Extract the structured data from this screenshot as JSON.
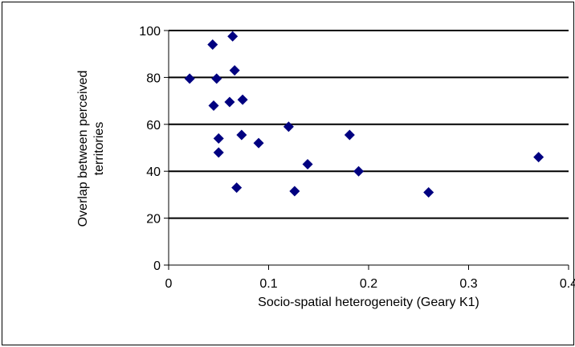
{
  "chart_data": {
    "type": "scatter",
    "title": "",
    "xlabel": "Socio-spatial heterogeneity (Geary K1)",
    "ylabel_lines": [
      "Overlap between perceived",
      "territories"
    ],
    "xlim": [
      0,
      0.4
    ],
    "ylim": [
      0,
      100
    ],
    "x_ticks": [
      0,
      0.1,
      0.2,
      0.3,
      0.4
    ],
    "x_tick_labels": [
      "0",
      "0.1",
      "0.2",
      "0.3",
      "0.4"
    ],
    "y_ticks": [
      0,
      20,
      40,
      60,
      80,
      100
    ],
    "y_tick_labels": [
      "0",
      "20",
      "40",
      "60",
      "80",
      "100"
    ],
    "grid": "horizontal",
    "legend": "none",
    "marker_color": "#000080",
    "series": [
      {
        "x": [
          0.021,
          0.044,
          0.064,
          0.066,
          0.048,
          0.045,
          0.061,
          0.074,
          0.12,
          0.05,
          0.073,
          0.09,
          0.181,
          0.05,
          0.139,
          0.19,
          0.068,
          0.126,
          0.26,
          0.37
        ],
        "y": [
          79.5,
          94,
          97.5,
          83,
          79.5,
          68,
          69.5,
          70.5,
          59,
          54,
          55.5,
          52,
          55.5,
          48,
          43,
          40,
          33,
          31.5,
          31,
          46
        ]
      }
    ]
  }
}
